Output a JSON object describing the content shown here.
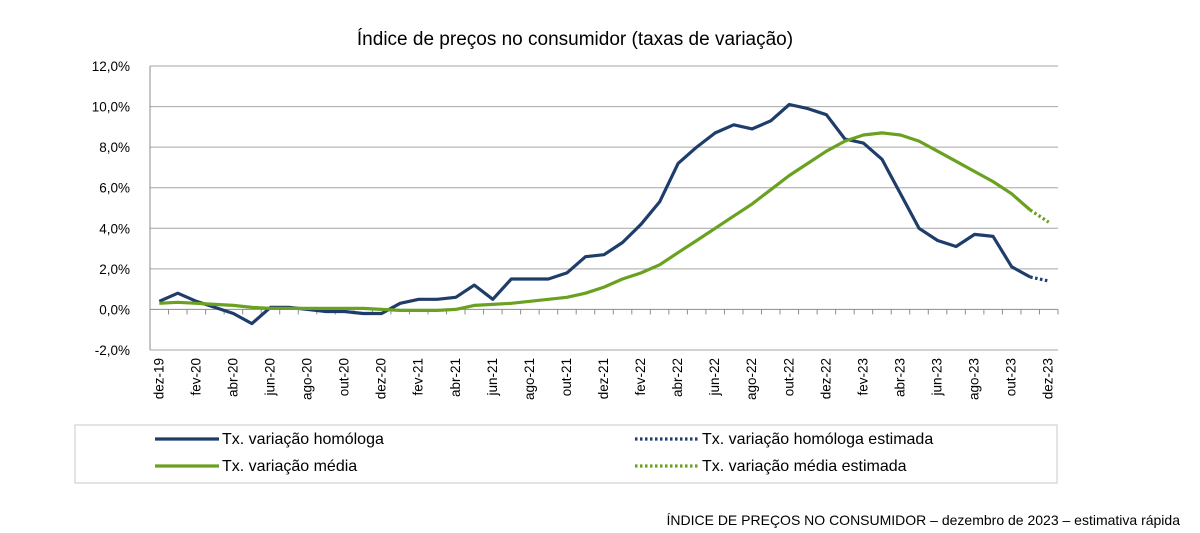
{
  "chart_data": {
    "type": "line",
    "title": "Índice de preços no consumidor  (taxas  de variação)",
    "xlabel": "",
    "ylabel": "",
    "ylim": [
      -2,
      12
    ],
    "yticks": [
      "-2,0%",
      "0,0%",
      "2,0%",
      "4,0%",
      "6,0%",
      "8,0%",
      "10,0%",
      "12,0%"
    ],
    "grid": "horizontal",
    "legend_placement": "bottom",
    "categories": [
      "dez-19",
      "jan-20",
      "fev-20",
      "mar-20",
      "abr-20",
      "mai-20",
      "jun-20",
      "jul-20",
      "ago-20",
      "set-20",
      "out-20",
      "nov-20",
      "dez-20",
      "jan-21",
      "fev-21",
      "mar-21",
      "abr-21",
      "mai-21",
      "jun-21",
      "jul-21",
      "ago-21",
      "set-21",
      "out-21",
      "nov-21",
      "dez-21",
      "jan-22",
      "fev-22",
      "mar-22",
      "abr-22",
      "mai-22",
      "jun-22",
      "jul-22",
      "ago-22",
      "set-22",
      "out-22",
      "nov-22",
      "dez-22",
      "jan-23",
      "fev-23",
      "mar-23",
      "abr-23",
      "mai-23",
      "jun-23",
      "jul-23",
      "ago-23",
      "set-23",
      "out-23",
      "nov-23",
      "dez-23"
    ],
    "tick_labels": [
      "dez-19",
      "fev-20",
      "abr-20",
      "jun-20",
      "ago-20",
      "out-20",
      "dez-20",
      "fev-21",
      "abr-21",
      "jun-21",
      "ago-21",
      "out-21",
      "dez-21",
      "fev-22",
      "abr-22",
      "jun-22",
      "ago-22",
      "out-22",
      "dez-22",
      "fev-23",
      "abr-23",
      "jun-23",
      "ago-23",
      "out-23",
      "dez-23"
    ],
    "series": [
      {
        "name": "Tx. variação homóloga",
        "color": "#1F3D6B",
        "style": "solid",
        "values": [
          0.4,
          0.8,
          0.4,
          0.1,
          -0.2,
          -0.7,
          0.1,
          0.1,
          0.0,
          -0.1,
          -0.1,
          -0.2,
          -0.2,
          0.3,
          0.5,
          0.5,
          0.6,
          1.2,
          0.5,
          1.5,
          1.5,
          1.5,
          1.8,
          2.6,
          2.7,
          3.3,
          4.2,
          5.3,
          7.2,
          8.0,
          8.7,
          9.1,
          8.9,
          9.3,
          10.1,
          9.9,
          9.6,
          8.4,
          8.2,
          7.4,
          5.7,
          4.0,
          3.4,
          3.1,
          3.7,
          3.6,
          2.1,
          1.6,
          null
        ]
      },
      {
        "name": "Tx. variação homóloga estimada",
        "color": "#1F3D6B",
        "style": "dotted",
        "values": [
          null,
          null,
          null,
          null,
          null,
          null,
          null,
          null,
          null,
          null,
          null,
          null,
          null,
          null,
          null,
          null,
          null,
          null,
          null,
          null,
          null,
          null,
          null,
          null,
          null,
          null,
          null,
          null,
          null,
          null,
          null,
          null,
          null,
          null,
          null,
          null,
          null,
          null,
          null,
          null,
          null,
          null,
          null,
          null,
          null,
          null,
          null,
          1.6,
          1.4
        ]
      },
      {
        "name": "Tx. variação média",
        "color": "#6AA121",
        "style": "solid",
        "values": [
          0.3,
          0.35,
          0.3,
          0.25,
          0.2,
          0.1,
          0.05,
          0.05,
          0.05,
          0.05,
          0.05,
          0.05,
          0.0,
          -0.05,
          -0.05,
          -0.05,
          0.0,
          0.2,
          0.25,
          0.3,
          0.4,
          0.5,
          0.6,
          0.8,
          1.1,
          1.5,
          1.8,
          2.2,
          2.8,
          3.4,
          4.0,
          4.6,
          5.2,
          5.9,
          6.6,
          7.2,
          7.8,
          8.3,
          8.6,
          8.7,
          8.6,
          8.3,
          7.8,
          7.3,
          6.8,
          6.3,
          5.7,
          4.9,
          null
        ]
      },
      {
        "name": "Tx. variação média  estimada",
        "color": "#6AA121",
        "style": "dotted",
        "values": [
          null,
          null,
          null,
          null,
          null,
          null,
          null,
          null,
          null,
          null,
          null,
          null,
          null,
          null,
          null,
          null,
          null,
          null,
          null,
          null,
          null,
          null,
          null,
          null,
          null,
          null,
          null,
          null,
          null,
          null,
          null,
          null,
          null,
          null,
          null,
          null,
          null,
          null,
          null,
          null,
          null,
          null,
          null,
          null,
          null,
          null,
          null,
          4.9,
          4.3
        ]
      }
    ]
  },
  "footer": "ÍNDICE DE PREÇOS NO CONSUMIDOR – dezembro de 2023 – estimativa rápida"
}
